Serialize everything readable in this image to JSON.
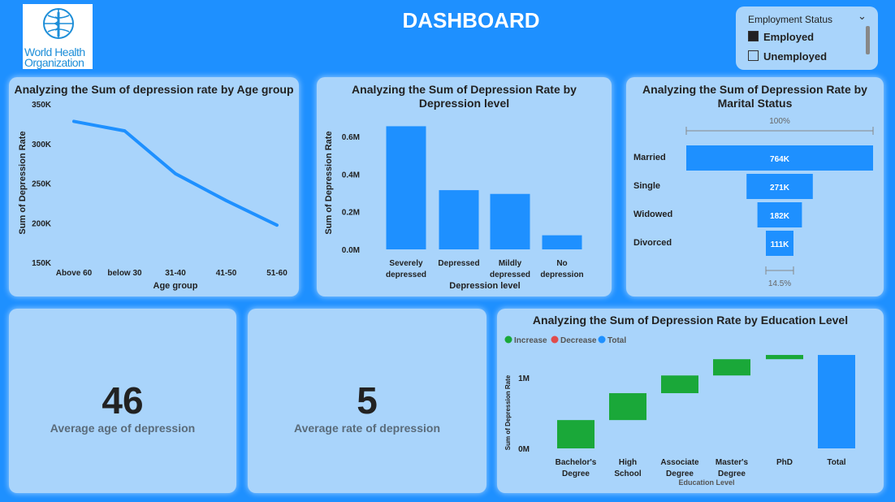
{
  "header": {
    "title": "DASHBOARD",
    "logo_text_1": "World Health",
    "logo_text_2": "Organization"
  },
  "slicer": {
    "title": "Employment Status",
    "options": [
      {
        "label": "Employed",
        "checked": true
      },
      {
        "label": "Unemployed",
        "checked": false
      }
    ]
  },
  "kpis": [
    {
      "value": "46",
      "label": "Average age of depression"
    },
    {
      "value": "5",
      "label": "Average rate of depression"
    }
  ],
  "colors": {
    "accent": "#1e90ff",
    "card": "#a9d4fb",
    "increase": "#1aa839",
    "decrease": "#e04c4c",
    "total": "#1e90ff"
  },
  "chart_data": [
    {
      "type": "line",
      "title": "Analyzing the Sum of depression rate by Age group",
      "xlabel": "Age group",
      "ylabel": "Sum of Depression Rate",
      "categories": [
        "Above 60",
        "below 30",
        "31-40",
        "41-50",
        "51-60"
      ],
      "values": [
        328000,
        316000,
        262000,
        228000,
        197000
      ],
      "ylim": [
        150000,
        350000
      ],
      "yticks": [
        "150K",
        "200K",
        "250K",
        "300K",
        "350K"
      ],
      "ytick_values": [
        150000,
        200000,
        250000,
        300000,
        350000
      ]
    },
    {
      "type": "bar",
      "title": "Analyzing the Sum of Depression Rate by Depression level",
      "xlabel": "Depression level",
      "ylabel": "Sum of Depression Rate",
      "categories": [
        [
          "Severely",
          "depressed"
        ],
        [
          "Depressed"
        ],
        [
          "Mildly",
          "depressed"
        ],
        [
          "No",
          "depression"
        ]
      ],
      "values": [
        655000,
        315000,
        295000,
        75000
      ],
      "ylim": [
        0,
        0.7
      ],
      "yticks": [
        "0.0M",
        "0.2M",
        "0.4M",
        "0.6M"
      ],
      "ytick_values": [
        0,
        200000,
        400000,
        600000
      ]
    },
    {
      "type": "bar",
      "subtype": "funnel",
      "title": "Analyzing the Sum of Depression Rate by Marital Status",
      "categories": [
        "Married",
        "Single",
        "Widowed",
        "Divorced"
      ],
      "values": [
        764000,
        271000,
        182000,
        111000
      ],
      "value_labels": [
        "764K",
        "271K",
        "182K",
        "111K"
      ],
      "top_percent": "100%",
      "bottom_percent": "14.5%"
    },
    {
      "type": "bar",
      "subtype": "waterfall",
      "title": "Analyzing the Sum of Depression Rate by Education Level",
      "xlabel": "Education Level",
      "ylabel": "Sum of Depression Rate",
      "legend": [
        "Increase",
        "Decrease",
        "Total"
      ],
      "legend_position": "top-left",
      "categories": [
        [
          "Bachelor's",
          "Degree"
        ],
        [
          "High",
          "School"
        ],
        [
          "Associate",
          "Degree"
        ],
        [
          "Master's",
          "Degree"
        ],
        [
          "PhD"
        ],
        [
          "Total"
        ]
      ],
      "values": [
        400000,
        380000,
        250000,
        230000,
        60000,
        1320000
      ],
      "kinds": [
        "increase",
        "increase",
        "increase",
        "increase",
        "increase",
        "total"
      ],
      "yticks": [
        "0M",
        "1M"
      ],
      "ytick_values": [
        0,
        1000000
      ],
      "ylim": [
        0,
        1400000
      ]
    }
  ]
}
